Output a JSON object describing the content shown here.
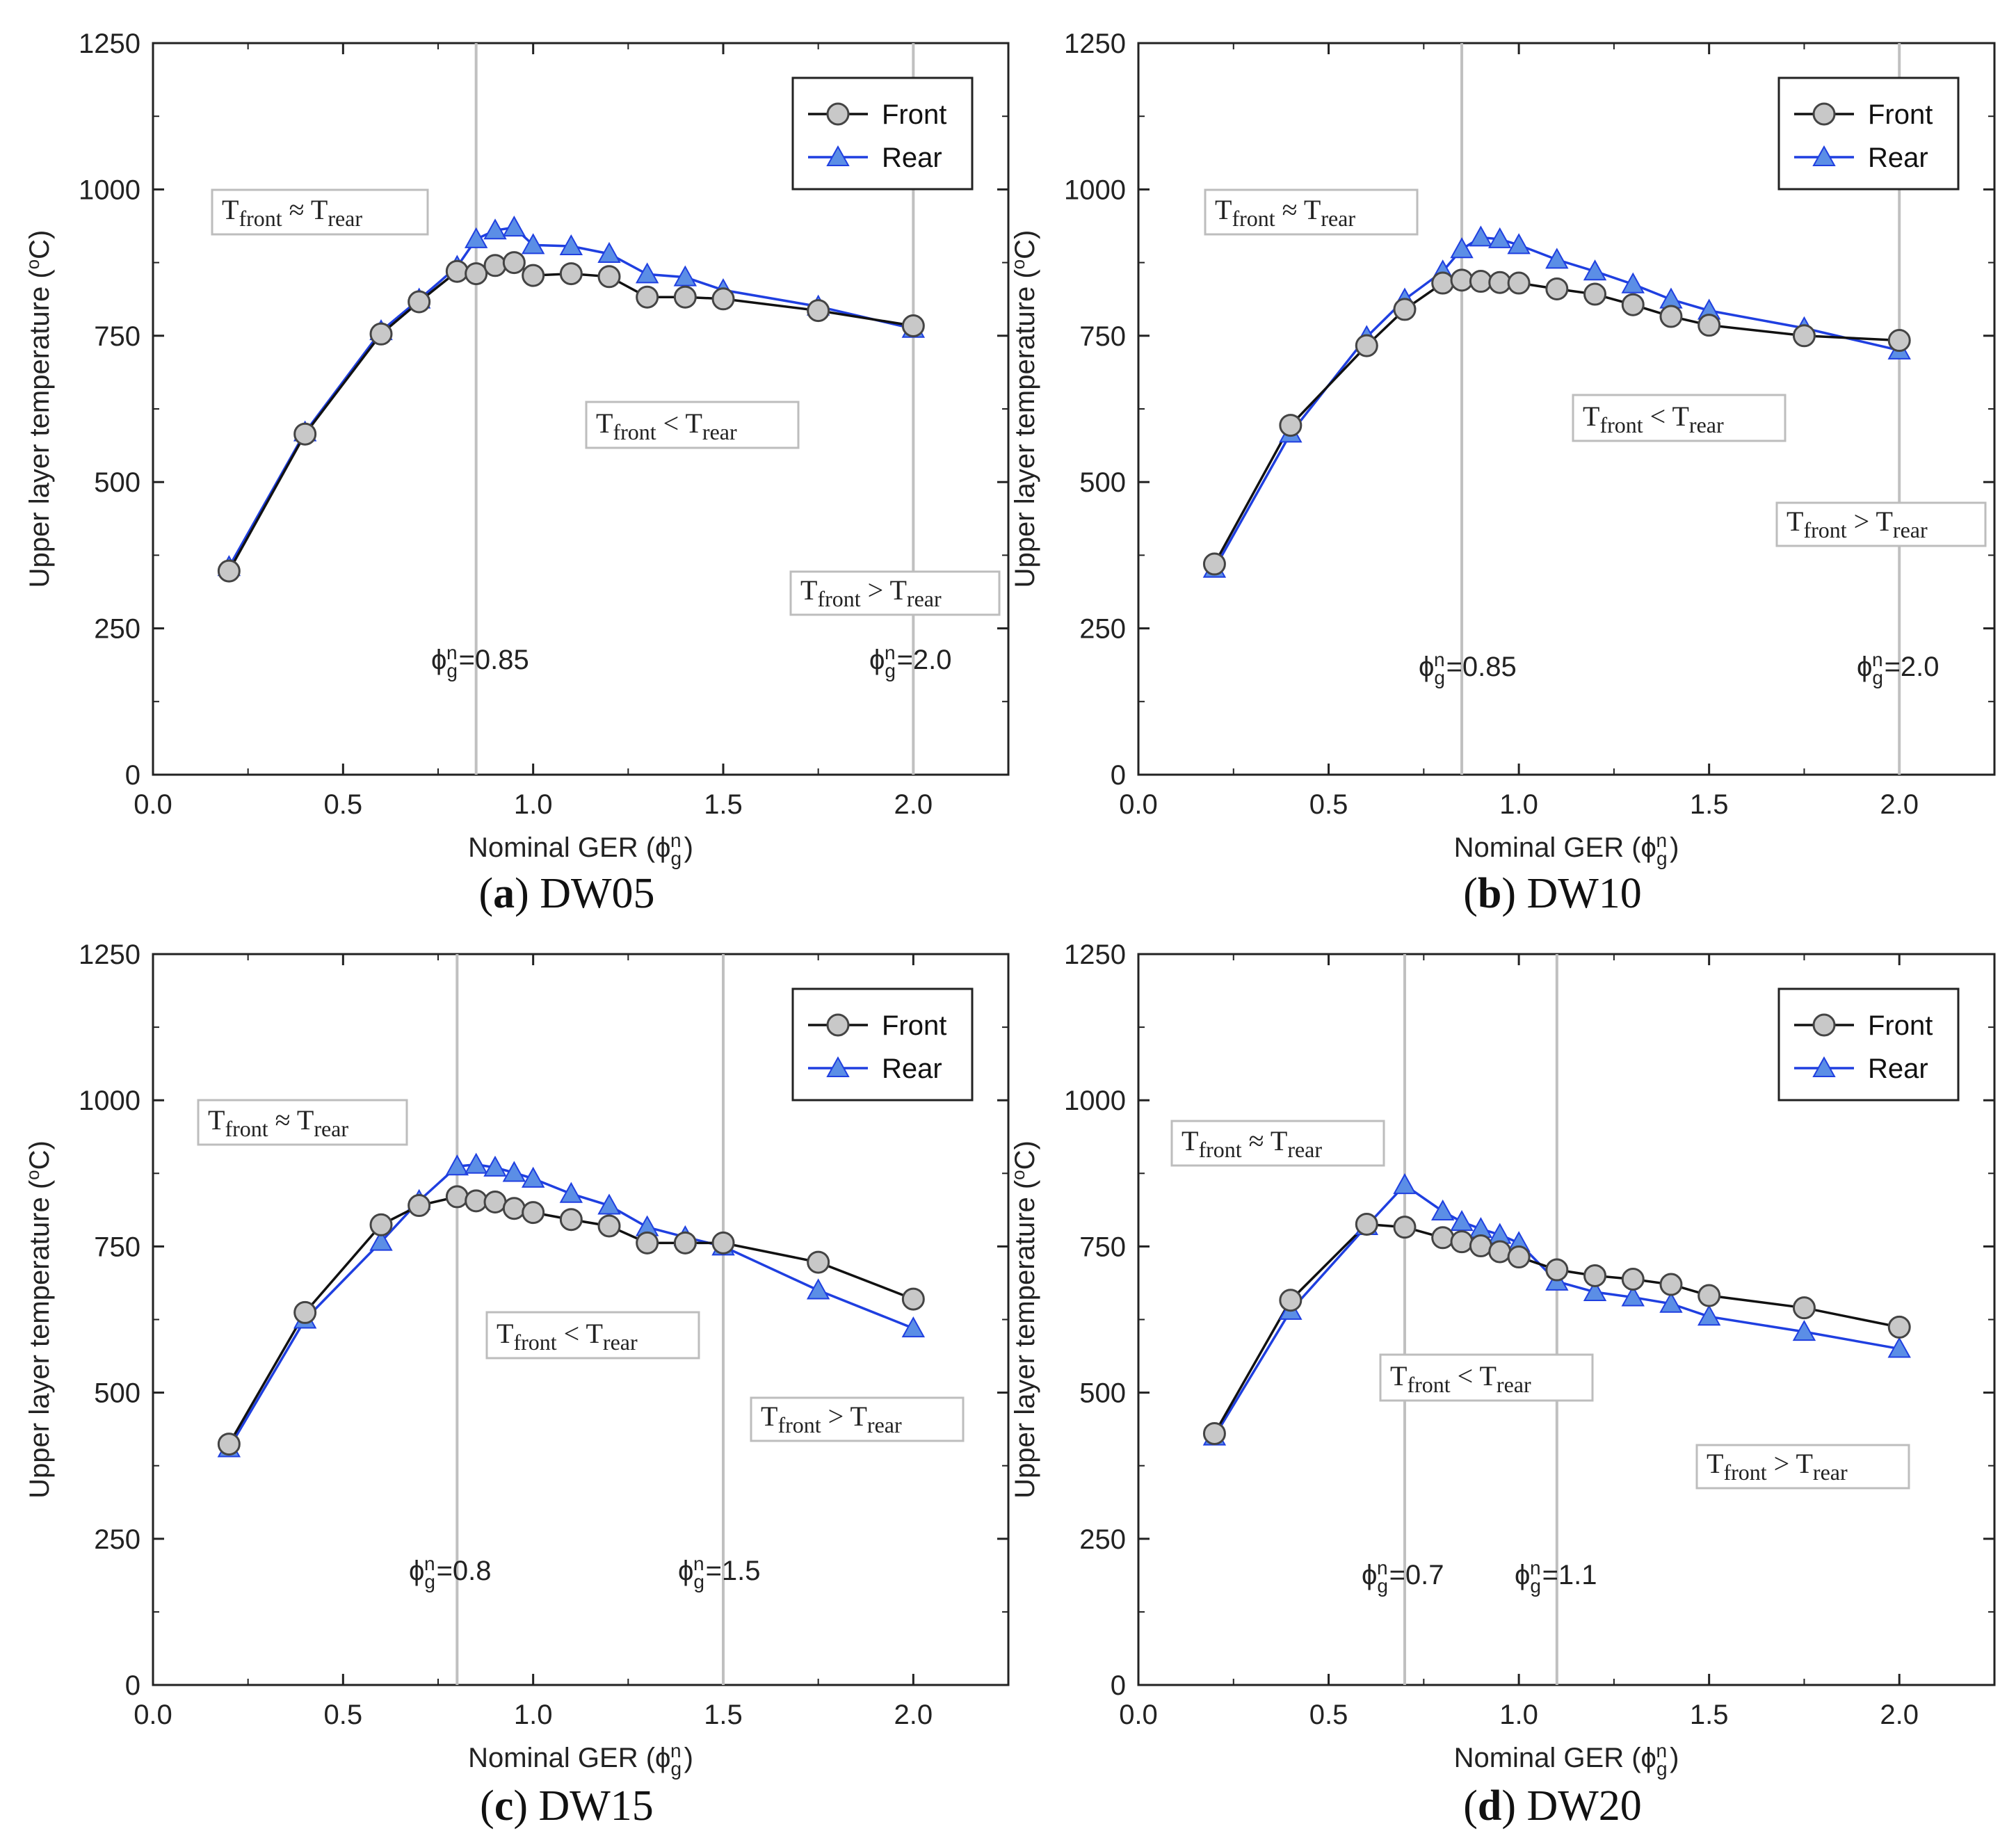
{
  "panels": [
    {
      "letter": "a",
      "name": "DW05",
      "annotations": {
        "approx": {
          "sub1": "front",
          "rel": "≈",
          "sub2": "rear"
        },
        "less": {
          "sub1": "front",
          "rel": "<",
          "sub2": "rear"
        },
        "greater": {
          "sub1": "front",
          "rel": ">",
          "sub2": "rear"
        }
      },
      "vlines": [
        {
          "value": 0.85,
          "label": "=0.85"
        },
        {
          "value": 2.0,
          "label": "=2.0"
        }
      ]
    },
    {
      "letter": "b",
      "name": "DW10",
      "annotations": {
        "approx": {
          "sub1": "front",
          "rel": "≈",
          "sub2": "rear"
        },
        "less": {
          "sub1": "front",
          "rel": "<",
          "sub2": "rear"
        },
        "greater": {
          "sub1": "front",
          "rel": ">",
          "sub2": "rear"
        }
      },
      "vlines": [
        {
          "value": 0.85,
          "label": "=0.85"
        },
        {
          "value": 2.0,
          "label": "=2.0"
        }
      ]
    },
    {
      "letter": "c",
      "name": "DW15",
      "annotations": {
        "approx": {
          "sub1": "front",
          "rel": "≈",
          "sub2": "rear"
        },
        "less": {
          "sub1": "front",
          "rel": "<",
          "sub2": "rear"
        },
        "greater": {
          "sub1": "front",
          "rel": ">",
          "sub2": "rear"
        }
      },
      "vlines": [
        {
          "value": 0.8,
          "label": "=0.8"
        },
        {
          "value": 1.5,
          "label": "=1.5"
        }
      ]
    },
    {
      "letter": "d",
      "name": "DW20",
      "annotations": {
        "approx": {
          "sub1": "front",
          "rel": "≈",
          "sub2": "rear"
        },
        "less": {
          "sub1": "front",
          "rel": "<",
          "sub2": "rear"
        },
        "greater": {
          "sub1": "front",
          "rel": ">",
          "sub2": "rear"
        }
      },
      "vlines": [
        {
          "value": 0.7,
          "label": "=0.7"
        },
        {
          "value": 1.1,
          "label": "=1.1"
        }
      ]
    }
  ],
  "common": {
    "xlabel": "Nominal GER (",
    "ylabel": "Upper layer temperature (",
    "ylabel_unit": "C)",
    "ylabel_degree": "o",
    "phi": "ϕ",
    "sub_g": "g",
    "sup_n": "n",
    "close_paren": ")",
    "T": "T",
    "legend": {
      "front": "Front",
      "rear": "Rear"
    },
    "xticks": [
      "0.0",
      "0.5",
      "1.0",
      "1.5",
      "2.0"
    ],
    "yticks": [
      "0",
      "250",
      "500",
      "750",
      "1000",
      "1250"
    ]
  },
  "colors": {
    "front_line": "#111111",
    "front_marker": "#c8c8c8",
    "rear": "#1f3fe0",
    "rear_marker": "#5b8ee6",
    "vline": "#c0c0c0"
  },
  "chart_data": [
    {
      "type": "line",
      "title": "(a) DW05",
      "xlabel": "Nominal GER (ϕgn)",
      "ylabel": "Upper layer temperature (oC)",
      "xlim": [
        0,
        2.25
      ],
      "ylim": [
        0,
        1250
      ],
      "series": [
        {
          "name": "Front",
          "x": [
            0.2,
            0.4,
            0.6,
            0.7,
            0.8,
            0.85,
            0.9,
            0.95,
            1.0,
            1.1,
            1.2,
            1.3,
            1.4,
            1.5,
            1.75,
            2.0
          ],
          "y": [
            348,
            582,
            753,
            808,
            860,
            856,
            870,
            875,
            853,
            856,
            851,
            816,
            816,
            813,
            793,
            767
          ]
        },
        {
          "name": "Rear",
          "x": [
            0.2,
            0.4,
            0.6,
            0.7,
            0.8,
            0.85,
            0.9,
            0.95,
            1.0,
            1.1,
            1.2,
            1.3,
            1.4,
            1.5,
            1.75,
            2.0
          ],
          "y": [
            355,
            585,
            758,
            812,
            868,
            915,
            930,
            935,
            905,
            903,
            890,
            855,
            850,
            828,
            800,
            762
          ]
        }
      ]
    },
    {
      "type": "line",
      "title": "(b) DW10",
      "xlabel": "Nominal GER (ϕgn)",
      "ylabel": "Upper layer temperature (oC)",
      "xlim": [
        0,
        2.25
      ],
      "ylim": [
        0,
        1250
      ],
      "series": [
        {
          "name": "Front",
          "x": [
            0.2,
            0.4,
            0.6,
            0.7,
            0.8,
            0.85,
            0.9,
            0.95,
            1.0,
            1.1,
            1.2,
            1.3,
            1.4,
            1.5,
            1.75,
            2.0
          ],
          "y": [
            360,
            597,
            733,
            795,
            840,
            845,
            843,
            841,
            840,
            830,
            821,
            803,
            783,
            768,
            750,
            742
          ]
        },
        {
          "name": "Rear",
          "x": [
            0.2,
            0.4,
            0.6,
            0.7,
            0.8,
            0.85,
            0.9,
            0.95,
            1.0,
            1.1,
            1.2,
            1.3,
            1.4,
            1.5,
            1.75,
            2.0
          ],
          "y": [
            352,
            583,
            748,
            812,
            860,
            898,
            918,
            915,
            905,
            880,
            860,
            838,
            812,
            793,
            763,
            725
          ]
        }
      ]
    },
    {
      "type": "line",
      "title": "(c) DW15",
      "xlabel": "Nominal GER (ϕgn)",
      "ylabel": "Upper layer temperature (oC)",
      "xlim": [
        0,
        2.25
      ],
      "ylim": [
        0,
        1250
      ],
      "series": [
        {
          "name": "Front",
          "x": [
            0.2,
            0.4,
            0.6,
            0.7,
            0.8,
            0.85,
            0.9,
            0.95,
            1.0,
            1.1,
            1.2,
            1.3,
            1.4,
            1.5,
            1.75,
            2.0
          ],
          "y": [
            412,
            637,
            787,
            820,
            835,
            828,
            826,
            815,
            808,
            796,
            785,
            756,
            756,
            756,
            723,
            660
          ]
        },
        {
          "name": "Rear",
          "x": [
            0.2,
            0.4,
            0.6,
            0.7,
            0.8,
            0.85,
            0.9,
            0.95,
            1.0,
            1.1,
            1.2,
            1.3,
            1.4,
            1.5,
            1.75,
            2.0
          ],
          "y": [
            405,
            625,
            758,
            828,
            887,
            890,
            885,
            876,
            866,
            840,
            820,
            783,
            766,
            750,
            675,
            610
          ]
        }
      ]
    },
    {
      "type": "line",
      "title": "(d) DW20",
      "xlabel": "Nominal GER (ϕgn)",
      "ylabel": "Upper layer temperature (oC)",
      "xlim": [
        0,
        2.25
      ],
      "ylim": [
        0,
        1250
      ],
      "series": [
        {
          "name": "Front",
          "x": [
            0.2,
            0.4,
            0.6,
            0.7,
            0.8,
            0.85,
            0.9,
            0.95,
            1.0,
            1.1,
            1.2,
            1.3,
            1.4,
            1.5,
            1.75,
            2.0
          ],
          "y": [
            430,
            658,
            788,
            783,
            765,
            758,
            751,
            741,
            732,
            710,
            700,
            694,
            685,
            666,
            645,
            612
          ]
        },
        {
          "name": "Rear",
          "x": [
            0.2,
            0.4,
            0.6,
            0.7,
            0.8,
            0.85,
            0.9,
            0.95,
            1.0,
            1.1,
            1.2,
            1.3,
            1.4,
            1.5,
            1.75,
            2.0
          ],
          "y": [
            425,
            640,
            785,
            855,
            810,
            792,
            780,
            770,
            756,
            690,
            672,
            663,
            652,
            630,
            604,
            575
          ]
        }
      ]
    }
  ]
}
